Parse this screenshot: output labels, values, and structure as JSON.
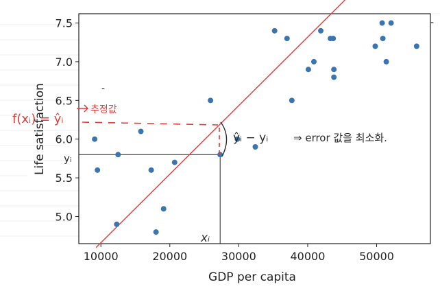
{
  "chart_data": {
    "type": "scatter",
    "xlabel": "GDP per capita",
    "ylabel": "Life satisfaction",
    "xlim": [
      6800,
      57800
    ],
    "ylim": [
      4.65,
      7.62
    ],
    "x_ticks": [
      10000,
      20000,
      30000,
      40000,
      50000
    ],
    "x_tick_labels": [
      "10000",
      "20000",
      "30000",
      "40000",
      "50000"
    ],
    "y_ticks": [
      5.0,
      5.5,
      6.0,
      6.5,
      7.0,
      7.5
    ],
    "y_tick_labels": [
      "5.0",
      "5.5",
      "6.0",
      "6.5",
      "7.0",
      "7.5"
    ],
    "grid": false,
    "point_color": "#3a75b0",
    "fit_line": {
      "color": "#e53935",
      "points": [
        [
          9300,
          4.6
        ],
        [
          46000,
          7.85
        ]
      ]
    },
    "points": [
      [
        9100,
        6.0
      ],
      [
        9500,
        5.6
      ],
      [
        12300,
        4.9
      ],
      [
        12500,
        5.8
      ],
      [
        15800,
        6.1
      ],
      [
        17300,
        5.6
      ],
      [
        18000,
        4.8
      ],
      [
        19100,
        5.1
      ],
      [
        20700,
        5.7
      ],
      [
        25900,
        6.5
      ],
      [
        27300,
        5.8
      ],
      [
        29800,
        6.0
      ],
      [
        32400,
        5.9
      ],
      [
        35200,
        7.4
      ],
      [
        37000,
        7.3
      ],
      [
        37700,
        6.5
      ],
      [
        40100,
        6.9
      ],
      [
        40900,
        7.0
      ],
      [
        41900,
        7.4
      ],
      [
        43300,
        7.3
      ],
      [
        43700,
        7.3
      ],
      [
        43800,
        6.9
      ],
      [
        43800,
        6.8
      ],
      [
        49800,
        7.2
      ],
      [
        50800,
        7.5
      ],
      [
        50900,
        7.3
      ],
      [
        51400,
        7.0
      ],
      [
        52100,
        7.5
      ],
      [
        55800,
        7.2
      ]
    ]
  },
  "annotations": {
    "y_i_label": "yᵢ",
    "x_i_label": "xᵢ",
    "left_formula": "f(xᵢ) = ŷᵢ",
    "arrow_note": "추정값",
    "error_expr": "ŷᵢ − yᵢ",
    "error_note": "⇒ error 값을 최소화."
  }
}
